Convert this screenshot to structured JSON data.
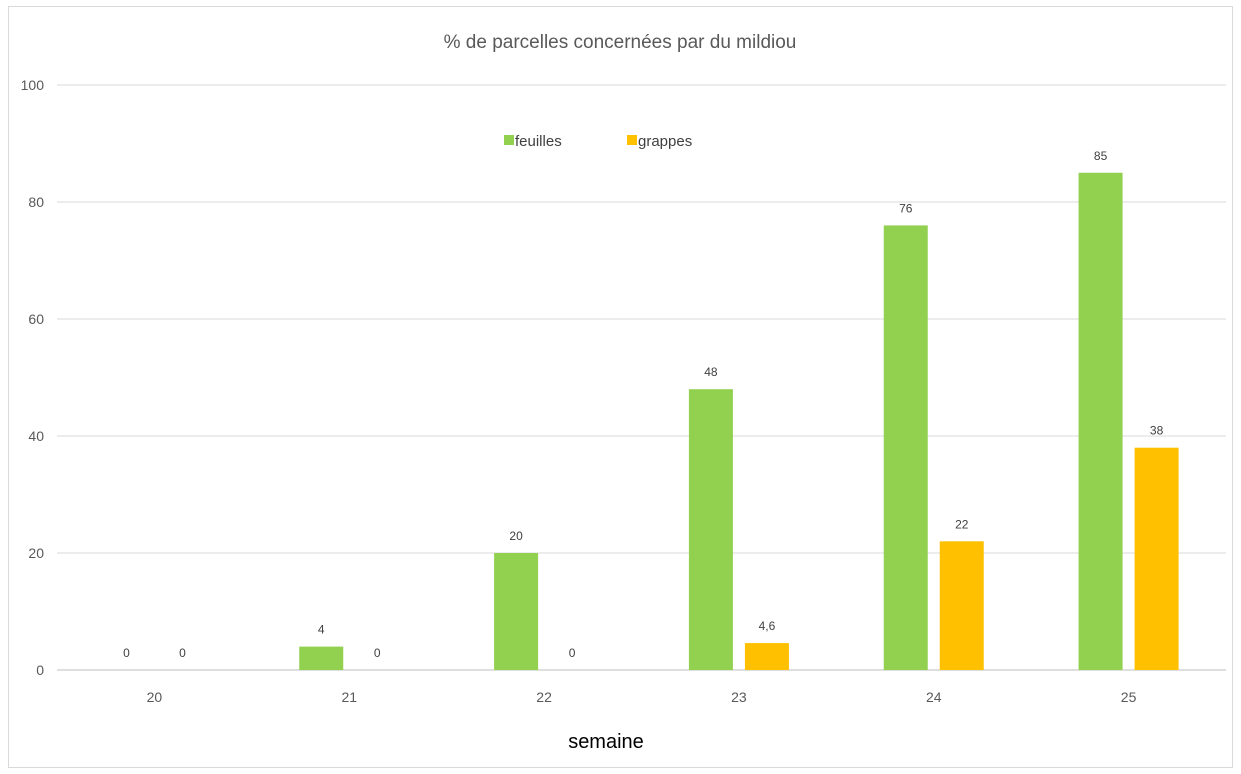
{
  "chart_data": {
    "type": "bar",
    "title": "% de parcelles concernées par du mildiou",
    "xlabel": "semaine",
    "ylabel": "",
    "categories": [
      "20",
      "21",
      "22",
      "23",
      "24",
      "25"
    ],
    "series": [
      {
        "name": "feuilles",
        "color": "#92d050",
        "values": [
          0,
          4,
          20,
          48,
          76,
          85
        ],
        "labels": [
          "0",
          "4",
          "20",
          "48",
          "76",
          "85"
        ]
      },
      {
        "name": "grappes",
        "color": "#ffc000",
        "values": [
          0,
          0,
          0,
          4.6,
          22,
          38
        ],
        "labels": [
          "0",
          "0",
          "0",
          "4,6",
          "22",
          "38"
        ]
      }
    ],
    "ylim": [
      0,
      100
    ],
    "yticks": [
      "0",
      "20",
      "40",
      "60",
      "80",
      "100"
    ],
    "grid": true,
    "legend_position": "top-center"
  }
}
